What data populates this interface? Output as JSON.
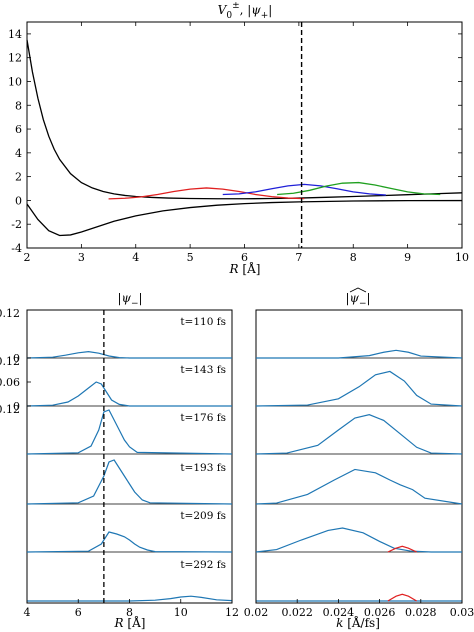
{
  "chart_data": [
    {
      "type": "line",
      "title": "V_0^±, |ψ_+|",
      "xlabel": "R [Å]",
      "ylabel": "",
      "xlim": [
        2,
        10
      ],
      "ylim": [
        -4,
        15
      ],
      "x_ticks": [
        "2",
        "3",
        "4",
        "5",
        "6",
        "7",
        "8",
        "9",
        "10"
      ],
      "y_ticks": [
        "-4",
        "-2",
        "0",
        "2",
        "4",
        "6",
        "8",
        "10",
        "12",
        "14"
      ],
      "vertical_dashed_line_x": 7.05,
      "grid": false,
      "series": [
        {
          "color": "#000000",
          "x": [
            2.0,
            2.1,
            2.2,
            2.3,
            2.4,
            2.5,
            2.6,
            2.8,
            3.0,
            3.2,
            3.4,
            3.6,
            3.8,
            4.0,
            4.3,
            4.6,
            5.0,
            5.5,
            6.0,
            6.5,
            7.0,
            7.5,
            8.0,
            8.5,
            9.0,
            9.5,
            10.0
          ],
          "y": [
            13.5,
            10.8,
            8.6,
            6.8,
            5.4,
            4.3,
            3.45,
            2.25,
            1.5,
            1.05,
            0.75,
            0.55,
            0.42,
            0.33,
            0.25,
            0.2,
            0.16,
            0.14,
            0.14,
            0.16,
            0.2,
            0.26,
            0.33,
            0.4,
            0.48,
            0.56,
            0.64
          ]
        },
        {
          "color": "#000000",
          "x": [
            2.0,
            2.2,
            2.4,
            2.6,
            2.8,
            3.0,
            3.3,
            3.6,
            4.0,
            4.5,
            5.0,
            5.5,
            6.0,
            6.5,
            7.0,
            8.0,
            9.0,
            10.0
          ],
          "y": [
            -0.3,
            -1.6,
            -2.55,
            -2.95,
            -2.9,
            -2.65,
            -2.2,
            -1.75,
            -1.3,
            -0.88,
            -0.6,
            -0.4,
            -0.27,
            -0.18,
            -0.12,
            -0.05,
            -0.02,
            -0.01
          ]
        },
        {
          "color": "#e02020",
          "x": [
            3.5,
            3.8,
            4.1,
            4.4,
            4.7,
            5.0,
            5.3,
            5.6,
            5.9,
            6.2,
            6.5,
            6.8,
            7.1
          ],
          "y": [
            0.13,
            0.18,
            0.3,
            0.5,
            0.75,
            0.95,
            1.05,
            0.95,
            0.75,
            0.5,
            0.32,
            0.2,
            0.15
          ]
        },
        {
          "color": "#2020d8",
          "x": [
            5.6,
            5.9,
            6.2,
            6.5,
            6.8,
            7.1,
            7.4,
            7.7,
            8.0,
            8.3,
            8.6
          ],
          "y": [
            0.5,
            0.55,
            0.72,
            0.98,
            1.22,
            1.35,
            1.22,
            0.98,
            0.72,
            0.55,
            0.45
          ]
        },
        {
          "color": "#20a020",
          "x": [
            6.6,
            6.9,
            7.2,
            7.5,
            7.8,
            8.1,
            8.4,
            8.7,
            9.0,
            9.3,
            9.6
          ],
          "y": [
            0.5,
            0.6,
            0.85,
            1.2,
            1.45,
            1.5,
            1.3,
            1.0,
            0.72,
            0.55,
            0.5
          ]
        }
      ]
    },
    {
      "type": "line",
      "title": "|ψ_−|",
      "xlabel": "R [Å]",
      "ylabel": "",
      "xlim": [
        4,
        12
      ],
      "panel_ylim": [
        0,
        0.12
      ],
      "x_ticks": [
        "4",
        "6",
        "8",
        "10",
        "12"
      ],
      "panel_y_ticks": [
        [
          "0.12",
          "0"
        ],
        [
          "0.12",
          "0.06",
          "0"
        ],
        [
          "0.12"
        ],
        [],
        []
      ],
      "vertical_dashed_line_x": 7.0,
      "grid": false,
      "panels": [
        {
          "label": "t=110 fs",
          "color": "#1f77b4",
          "x": [
            4.0,
            5.0,
            5.5,
            6.0,
            6.4,
            6.8,
            7.2,
            7.6,
            8.0,
            12.0
          ],
          "y": [
            0.0,
            0.002,
            0.007,
            0.013,
            0.016,
            0.012,
            0.005,
            0.001,
            0.0,
            0.0
          ]
        },
        {
          "label": "t=143 fs",
          "color": "#1f77b4",
          "x": [
            4.0,
            5.0,
            5.6,
            6.0,
            6.4,
            6.7,
            6.9,
            7.1,
            7.3,
            7.6,
            8.0,
            12.0
          ],
          "y": [
            0.0,
            0.002,
            0.01,
            0.025,
            0.045,
            0.06,
            0.055,
            0.035,
            0.015,
            0.004,
            0.0,
            0.0
          ]
        },
        {
          "label": "t=176 fs",
          "color": "#1f77b4",
          "x": [
            4.0,
            6.0,
            6.5,
            6.8,
            7.0,
            7.2,
            7.4,
            7.6,
            7.8,
            8.0,
            8.3,
            12.0
          ],
          "y": [
            0.0,
            0.003,
            0.02,
            0.06,
            0.105,
            0.11,
            0.085,
            0.06,
            0.035,
            0.018,
            0.004,
            0.0
          ]
        },
        {
          "label": "t=193 fs",
          "color": "#1f77b4",
          "x": [
            4.0,
            6.0,
            6.6,
            7.0,
            7.2,
            7.4,
            7.6,
            7.8,
            8.0,
            8.2,
            8.5,
            8.8,
            12.0
          ],
          "y": [
            0.0,
            0.003,
            0.02,
            0.07,
            0.105,
            0.11,
            0.09,
            0.07,
            0.05,
            0.03,
            0.01,
            0.003,
            0.0
          ]
        },
        {
          "label": "t=209 fs",
          "color": "#1f77b4",
          "x": [
            4.0,
            6.4,
            6.9,
            7.2,
            7.5,
            7.8,
            8.0,
            8.2,
            8.4,
            8.7,
            9.0,
            12.0
          ],
          "y": [
            0.0,
            0.002,
            0.02,
            0.05,
            0.045,
            0.038,
            0.03,
            0.02,
            0.012,
            0.005,
            0.001,
            0.0
          ]
        },
        {
          "label": "t=292 fs",
          "color": "#1f77b4",
          "x": [
            4.0,
            8.0,
            9.0,
            9.6,
            10.0,
            10.4,
            10.8,
            11.4,
            12.0
          ],
          "y": [
            0.0,
            0.0,
            0.002,
            0.006,
            0.01,
            0.012,
            0.009,
            0.003,
            0.001
          ]
        }
      ]
    },
    {
      "type": "line",
      "title": "|ψ̂_−|",
      "xlabel": "k [Å/fs]",
      "ylabel": "",
      "xlim": [
        0.02,
        0.03
      ],
      "panel_ylim": [
        0,
        1
      ],
      "x_ticks": [
        "0.02",
        "0.022",
        "0.024",
        "0.026",
        "0.028",
        "0.03"
      ],
      "grid": false,
      "panels": [
        {
          "color": "#1f77b4",
          "x": [
            0.02,
            0.024,
            0.0255,
            0.0262,
            0.0268,
            0.0274,
            0.028,
            0.03
          ],
          "y": [
            0.0,
            0.0,
            0.05,
            0.12,
            0.16,
            0.12,
            0.04,
            0.0
          ]
        },
        {
          "color": "#1f77b4",
          "x": [
            0.02,
            0.0225,
            0.024,
            0.025,
            0.0258,
            0.0265,
            0.0272,
            0.0278,
            0.0285,
            0.03
          ],
          "y": [
            0.0,
            0.02,
            0.15,
            0.4,
            0.65,
            0.72,
            0.52,
            0.22,
            0.04,
            0.0
          ]
        },
        {
          "color": "#1f77b4",
          "x": [
            0.02,
            0.0215,
            0.023,
            0.024,
            0.0248,
            0.0255,
            0.0262,
            0.027,
            0.0278,
            0.0285,
            0.03
          ],
          "y": [
            0.0,
            0.02,
            0.18,
            0.5,
            0.75,
            0.82,
            0.7,
            0.42,
            0.14,
            0.02,
            0.0
          ]
        },
        {
          "color": "#1f77b4",
          "x": [
            0.02,
            0.021,
            0.0225,
            0.0238,
            0.0248,
            0.0258,
            0.0265,
            0.027,
            0.0276,
            0.0282,
            0.03
          ],
          "y": [
            0.0,
            0.02,
            0.2,
            0.5,
            0.72,
            0.65,
            0.5,
            0.4,
            0.3,
            0.12,
            0.0
          ]
        },
        {
          "color": "#1f77b4",
          "x": [
            0.02,
            0.021,
            0.0222,
            0.0235,
            0.0242,
            0.0252,
            0.026,
            0.0267,
            0.0275,
            0.0285,
            0.03
          ],
          "y": [
            0.0,
            0.05,
            0.25,
            0.45,
            0.5,
            0.4,
            0.22,
            0.08,
            0.02,
            0.0,
            0.0
          ],
          "extra": {
            "color": "#e02020",
            "x": [
              0.0264,
              0.0268,
              0.0271,
              0.0274,
              0.0278
            ],
            "y": [
              0.0,
              0.08,
              0.12,
              0.08,
              0.0
            ]
          }
        },
        {
          "color": "#1f77b4",
          "x": [
            0.02,
            0.03
          ],
          "y": [
            0.0,
            0.0
          ],
          "extra": {
            "color": "#e02020",
            "x": [
              0.0264,
              0.0268,
              0.0271,
              0.0274,
              0.0278
            ],
            "y": [
              0.0,
              0.1,
              0.14,
              0.1,
              0.0
            ]
          }
        }
      ]
    }
  ]
}
